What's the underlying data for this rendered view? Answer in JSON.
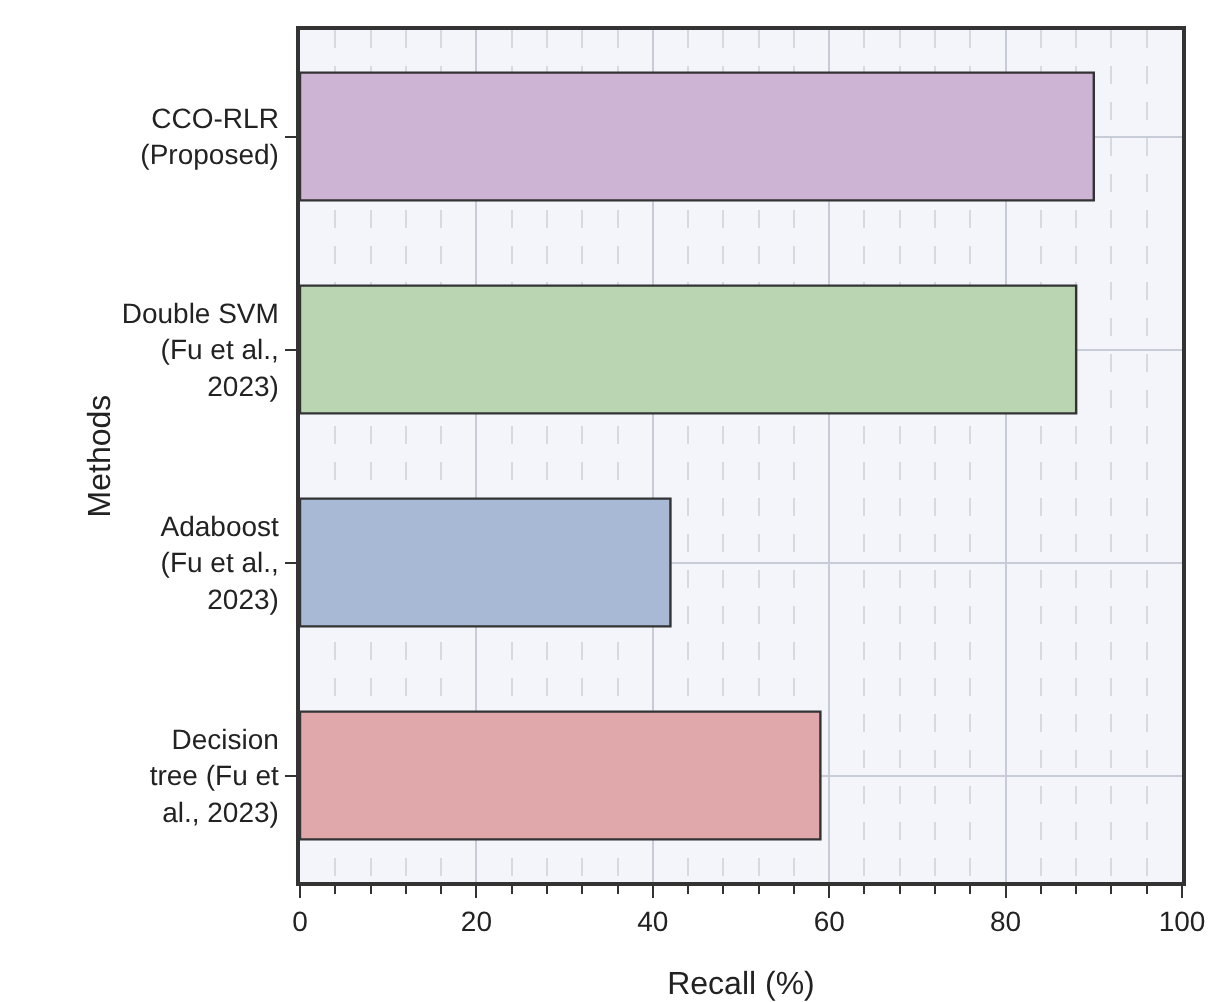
{
  "chart_data": {
    "type": "bar",
    "orientation": "horizontal",
    "xlabel": "Recall (%)",
    "ylabel": "Methods",
    "categories": [
      "CCO-RLR (Proposed)",
      "Double SVM (Fu et al., 2023)",
      "Adaboost (Fu et al., 2023)",
      "Decision tree (Fu et al., 2023)"
    ],
    "values": [
      90,
      88,
      42,
      59
    ],
    "colors": [
      "#cdb3d4",
      "#b9d5b2",
      "#a7b9d4",
      "#e0a8aa"
    ],
    "xlim": [
      0,
      100
    ],
    "xticks": [
      0,
      20,
      40,
      60,
      80,
      100
    ],
    "grid": true
  }
}
